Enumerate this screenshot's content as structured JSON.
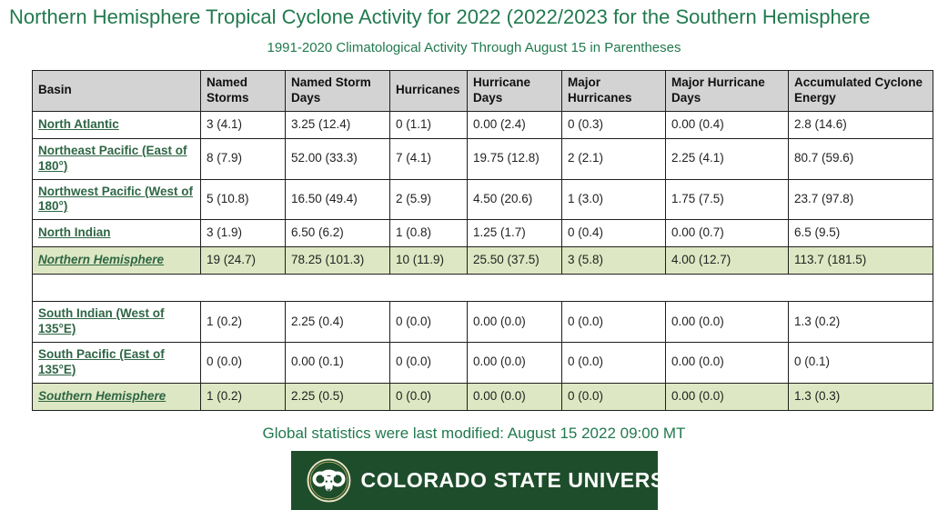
{
  "page": {
    "title": "Northern Hemisphere Tropical Cyclone Activity for 2022 (2022/2023 for the Southern Hemisphere",
    "subtitle": "1991-2020 Climatological Activity Through August 15 in Parentheses",
    "last_modified_note": "Global statistics were last modified: August 15 2022 09:00 MT"
  },
  "colors": {
    "heading_green": "#217a4e",
    "link_green": "#2e6644",
    "header_row_bg": "#d3d3d3",
    "summary_row_bg": "#dde7c3",
    "csu_banner_green": "#1e4d2b"
  },
  "table": {
    "columns": [
      "Basin",
      "Named Storms",
      "Named Storm Days",
      "Hurricanes",
      "Hurricane Days",
      "Major Hurricanes",
      "Major Hurricane Days",
      "Accumulated Cyclone Energy"
    ],
    "rows": [
      {
        "basin": "North Atlantic",
        "summary": false,
        "spacer": false,
        "values": [
          "3 (4.1)",
          "3.25 (12.4)",
          "0 (1.1)",
          "0.00 (2.4)",
          "0 (0.3)",
          "0.00 (0.4)",
          "2.8 (14.6)"
        ]
      },
      {
        "basin": "Northeast Pacific (East of 180°)",
        "summary": false,
        "spacer": false,
        "values": [
          "8 (7.9)",
          "52.00 (33.3)",
          "7 (4.1)",
          "19.75 (12.8)",
          "2 (2.1)",
          "2.25 (4.1)",
          "80.7 (59.6)"
        ]
      },
      {
        "basin": "Northwest Pacific (West of 180°)",
        "summary": false,
        "spacer": false,
        "values": [
          "5 (10.8)",
          "16.50 (49.4)",
          "2 (5.9)",
          "4.50 (20.6)",
          "1 (3.0)",
          "1.75 (7.5)",
          "23.7 (97.8)"
        ]
      },
      {
        "basin": "North Indian",
        "summary": false,
        "spacer": false,
        "values": [
          "3 (1.9)",
          "6.50 (6.2)",
          "1 (0.8)",
          "1.25 (1.7)",
          "0 (0.4)",
          "0.00 (0.7)",
          "6.5 (9.5)"
        ]
      },
      {
        "basin": "Northern Hemisphere",
        "summary": true,
        "spacer": false,
        "values": [
          "19 (24.7)",
          "78.25 (101.3)",
          "10 (11.9)",
          "25.50 (37.5)",
          "3 (5.8)",
          "4.00 (12.7)",
          "113.7 (181.5)"
        ]
      },
      {
        "basin": "",
        "summary": false,
        "spacer": true,
        "values": []
      },
      {
        "basin": "South Indian (West of 135°E)",
        "summary": false,
        "spacer": false,
        "values": [
          "1 (0.2)",
          "2.25 (0.4)",
          "0 (0.0)",
          "0.00 (0.0)",
          "0 (0.0)",
          "0.00 (0.0)",
          "1.3 (0.2)"
        ]
      },
      {
        "basin": "South Pacific (East of 135°E)",
        "summary": false,
        "spacer": false,
        "values": [
          "0 (0.0)",
          "0.00 (0.1)",
          "0 (0.0)",
          "0.00 (0.0)",
          "0 (0.0)",
          "0.00 (0.0)",
          "0 (0.1)"
        ]
      },
      {
        "basin": "Southern Hemisphere",
        "summary": true,
        "spacer": false,
        "values": [
          "1 (0.2)",
          "2.25 (0.5)",
          "0 (0.0)",
          "0.00 (0.0)",
          "0 (0.0)",
          "0.00 (0.0)",
          "1.3 (0.3)"
        ]
      }
    ]
  },
  "logo": {
    "wordmark": "COLORADO STATE UNIVERSITY",
    "emblem": "csu-ram-logo"
  }
}
